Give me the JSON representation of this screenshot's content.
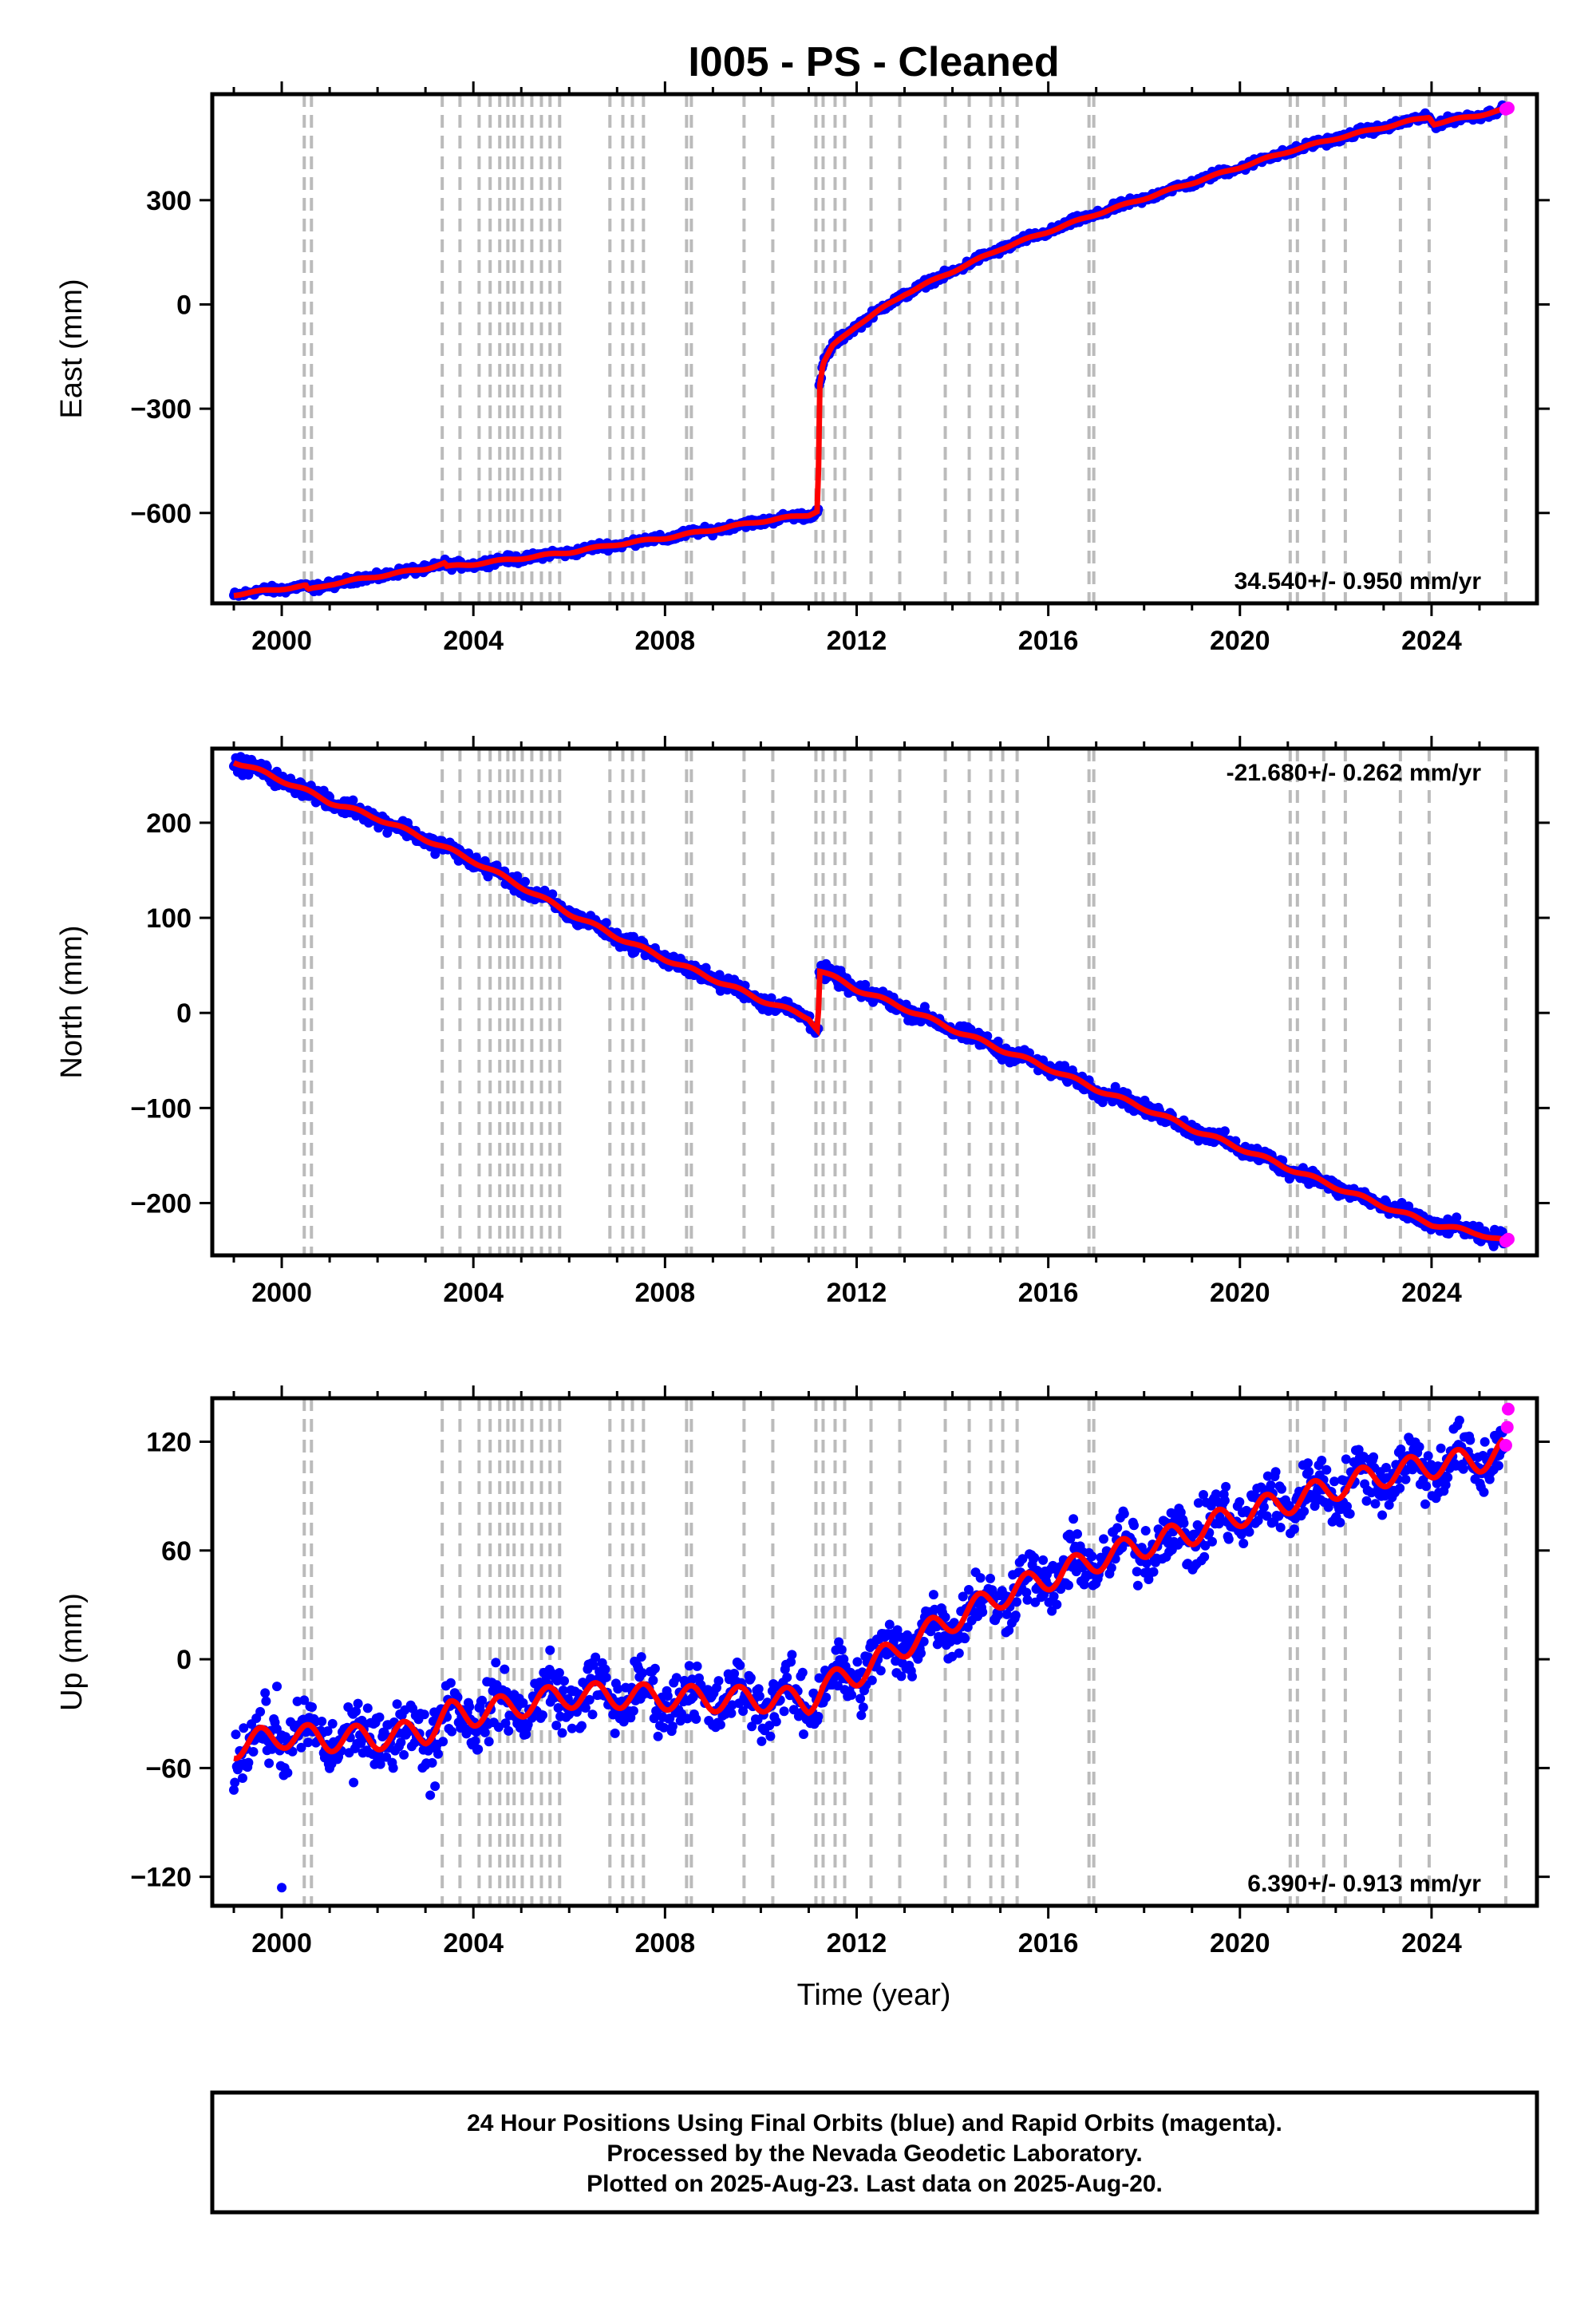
{
  "title": "I005  - PS - Cleaned",
  "xlabel": "Time (year)",
  "footer": {
    "line1": "24 Hour Positions Using Final Orbits (blue) and Rapid Orbits (magenta).",
    "line2": "Processed by the Nevada Geodetic Laboratory.",
    "line3": "Plotted on 2025-Aug-23. Last data on 2025-Aug-20."
  },
  "colors": {
    "final_orbits": "#0000ff",
    "rapid_orbits": "#ff00ff",
    "model": "#ff0000",
    "event_lines": "#bbbbbb"
  },
  "chart_data": [
    {
      "type": "scatter",
      "ylabel": "East (mm)",
      "rate": "34.540+/- 0.950 mm/yr",
      "xlim": [
        1998.55,
        2026.2
      ],
      "ylim": [
        -860,
        605
      ],
      "xticks": [
        2000,
        2004,
        2008,
        2012,
        2016,
        2020,
        2024
      ],
      "yticks": [
        -600,
        -300,
        0,
        300
      ],
      "series": [
        {
          "name": "Final orbits",
          "x": [
            1999.0,
            2000.0,
            2000.5,
            2000.55,
            2001.0,
            2002.0,
            2003.0,
            2003.4,
            2003.45,
            2004.0,
            2005.0,
            2006.0,
            2007.0,
            2008.0,
            2009.0,
            2010.0,
            2011.0,
            2011.2,
            2011.21,
            2011.3,
            2011.5,
            2012.0,
            2013.0,
            2014.0,
            2015.0,
            2016.0,
            2017.0,
            2018.0,
            2019.0,
            2020.0,
            2021.0,
            2022.0,
            2023.0,
            2023.95,
            2024.05,
            2025.0,
            2025.5
          ],
          "y": [
            -835,
            -818,
            -810,
            -822,
            -805,
            -782,
            -760,
            -745,
            -755,
            -747,
            -730,
            -713,
            -690,
            -672,
            -648,
            -624,
            -605,
            -592,
            -250,
            -170,
            -120,
            -60,
            30,
            95,
            160,
            210,
            260,
            305,
            350,
            395,
            440,
            478,
            510,
            540,
            520,
            545,
            560
          ]
        },
        {
          "name": "Rapid orbits",
          "x": [
            2025.55,
            2025.6
          ],
          "y": [
            562,
            565
          ]
        }
      ]
    },
    {
      "type": "scatter",
      "ylabel": "North (mm)",
      "rate": "-21.680+/- 0.262 mm/yr",
      "xlim": [
        1998.55,
        2026.2
      ],
      "ylim": [
        -255,
        278
      ],
      "xticks": [
        2000,
        2004,
        2008,
        2012,
        2016,
        2020,
        2024
      ],
      "yticks": [
        -200,
        -100,
        0,
        100,
        200
      ],
      "series": [
        {
          "name": "Final orbits",
          "x": [
            1999.0,
            2000.0,
            2001.0,
            2002.0,
            2003.0,
            2004.0,
            2005.0,
            2006.0,
            2007.0,
            2008.0,
            2009.0,
            2010.0,
            2011.0,
            2011.2,
            2011.21,
            2012.0,
            2013.0,
            2014.0,
            2015.0,
            2016.0,
            2017.0,
            2018.0,
            2019.0,
            2020.0,
            2021.0,
            2022.0,
            2023.0,
            2024.0,
            2025.0,
            2025.5
          ],
          "y": [
            265,
            245,
            222,
            205,
            183,
            160,
            133,
            105,
            80,
            57,
            36,
            14,
            -5,
            -18,
            45,
            25,
            5,
            -17,
            -38,
            -58,
            -80,
            -100,
            -122,
            -142,
            -163,
            -183,
            -203,
            -222,
            -232,
            -240
          ]
        },
        {
          "name": "Rapid orbits",
          "x": [
            2025.55,
            2025.6
          ],
          "y": [
            -240,
            -238
          ]
        }
      ]
    },
    {
      "type": "scatter",
      "ylabel": "Up (mm)",
      "rate": "6.390+/- 0.913 mm/yr",
      "xlim": [
        1998.55,
        2026.2
      ],
      "ylim": [
        -136,
        144
      ],
      "xticks": [
        2000,
        2004,
        2008,
        2012,
        2016,
        2020,
        2024
      ],
      "yticks": [
        -120,
        -60,
        0,
        60,
        120
      ],
      "series": [
        {
          "name": "Final orbits",
          "x": [
            1999.0,
            2000.0,
            2001.0,
            2002.0,
            2003.0,
            2003.5,
            2004.0,
            2005.0,
            2006.0,
            2007.0,
            2008.0,
            2009.0,
            2010.0,
            2011.0,
            2011.3,
            2012.0,
            2013.0,
            2014.0,
            2015.0,
            2016.0,
            2017.0,
            2018.0,
            2019.0,
            2020.0,
            2021.0,
            2022.0,
            2023.0,
            2024.0,
            2025.0,
            2025.5
          ],
          "y": [
            -48,
            -42,
            -44,
            -43,
            -40,
            -30,
            -30,
            -25,
            -20,
            -20,
            -21,
            -22,
            -22,
            -23,
            -15,
            -8,
            8,
            22,
            35,
            45,
            55,
            63,
            70,
            80,
            87,
            95,
            102,
            107,
            110,
            115
          ]
        },
        {
          "name": "Rapid orbits",
          "x": [
            2025.55,
            2025.58,
            2025.6
          ],
          "y": [
            118,
            128,
            138
          ]
        }
      ]
    }
  ],
  "event_years": [
    2000.47,
    2000.62,
    2003.35,
    2003.72,
    2004.12,
    2004.35,
    2004.55,
    2004.72,
    2004.85,
    2005.02,
    2005.22,
    2005.42,
    2005.6,
    2005.8,
    2006.85,
    2007.12,
    2007.32,
    2007.55,
    2008.45,
    2008.55,
    2009.65,
    2010.25,
    2011.15,
    2011.3,
    2011.55,
    2011.75,
    2012.3,
    2012.9,
    2013.85,
    2014.35,
    2014.8,
    2015.05,
    2015.35,
    2016.85,
    2016.95,
    2021.05,
    2021.2,
    2021.75,
    2022.2,
    2023.35,
    2023.95,
    2025.55
  ]
}
